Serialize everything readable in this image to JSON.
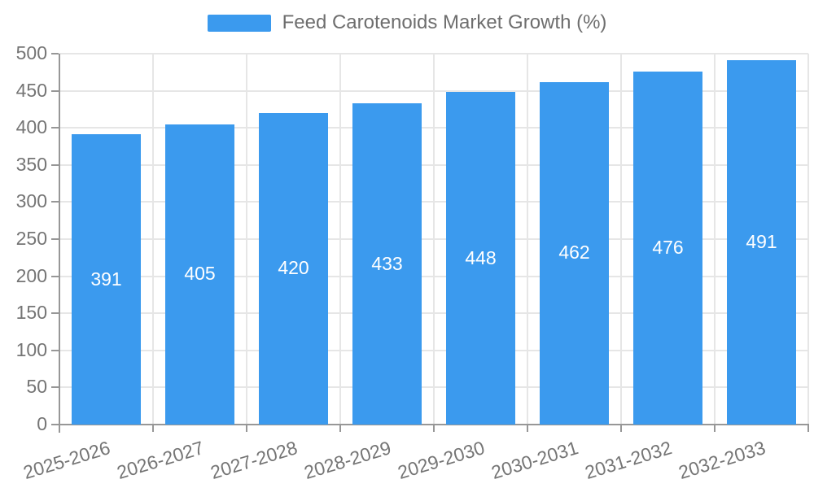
{
  "legend": {
    "label": "Feed Carotenoids Market Growth (%)"
  },
  "colors": {
    "bar": "#3b9aee",
    "axis": "#979797",
    "grid": "#e6e6e6",
    "axis_text": "#757575",
    "legend_text": "#6e6e6e",
    "bar_label_text": "#ffffff"
  },
  "chart_data": {
    "type": "bar",
    "title": "Feed Carotenoids Market Growth (%)",
    "categories": [
      "2025-2026",
      "2026-2027",
      "2027-2028",
      "2028-2029",
      "2029-2030",
      "2030-2031",
      "2031-2032",
      "2032-2033"
    ],
    "values": [
      391,
      405,
      420,
      433,
      448,
      462,
      476,
      491
    ],
    "xlabel": "",
    "ylabel": "",
    "ylim": [
      0,
      500
    ],
    "ytick_step": 50,
    "ytick_labels": [
      "0",
      "50",
      "100",
      "150",
      "200",
      "250",
      "300",
      "350",
      "400",
      "450",
      "500"
    ],
    "grid": true,
    "legend_position": "top-center",
    "value_labels": "inside-center",
    "x_label_rotation_deg": -17
  }
}
